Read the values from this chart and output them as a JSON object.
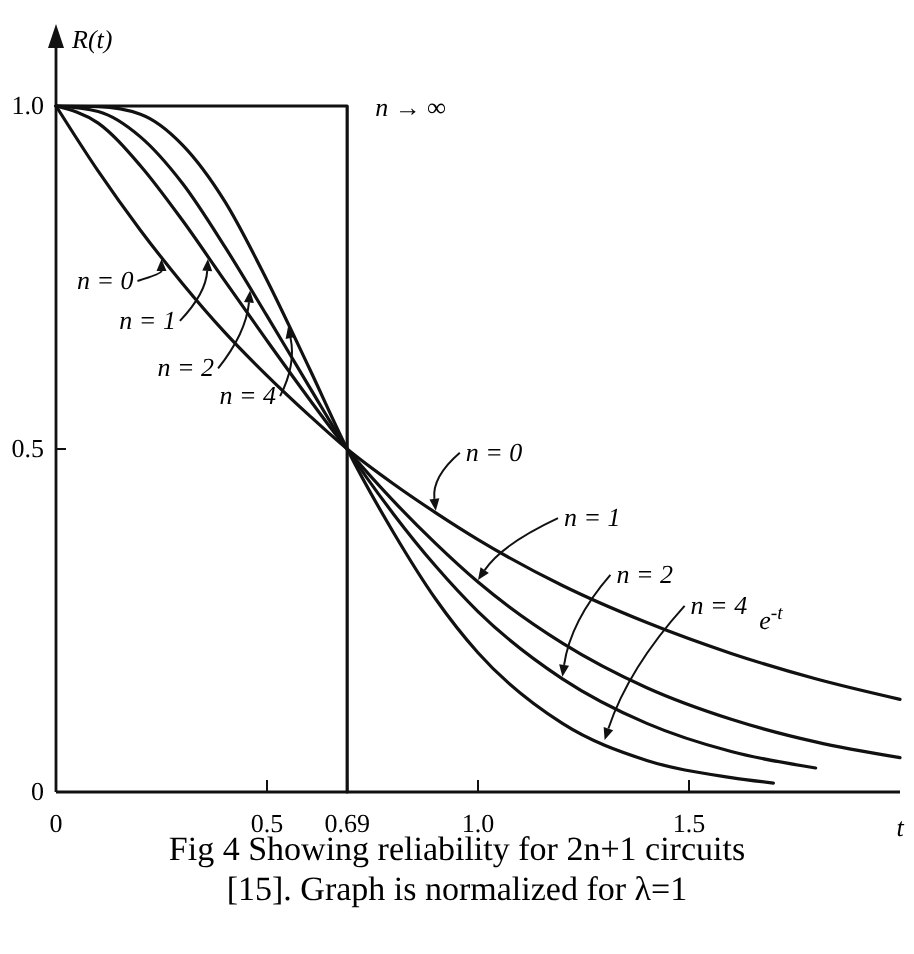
{
  "chart_data": {
    "type": "line",
    "title": "Fig 4   Showing reliability for 2n+1 circuits [15]. Graph is normalized for λ=1",
    "xlabel": "t",
    "ylabel": "R(t)",
    "xlim": [
      0,
      2.0
    ],
    "ylim": [
      0,
      1
    ],
    "xticks": [
      0,
      0.5,
      0.69,
      {
        "value": 1,
        "label": "1.0"
      },
      1.5
    ],
    "yticks": [
      0,
      0.5,
      {
        "value": 1,
        "label": "1.0"
      }
    ],
    "grid": false,
    "legend": false,
    "marker": "none",
    "line_style": "solid",
    "series": [
      {
        "color": "#111111",
        "x": [
          0,
          0.1,
          0.2,
          0.3,
          0.4,
          0.5,
          0.6,
          0.69,
          0.8,
          0.9,
          1.0,
          1.2,
          1.4,
          1.6,
          1.8,
          2.0
        ],
        "values": [
          1,
          0.905,
          0.819,
          0.741,
          0.67,
          0.607,
          0.549,
          0.5,
          0.449,
          0.407,
          0.368,
          0.301,
          0.247,
          0.202,
          0.165,
          0.135
        ]
      },
      {
        "color": "#111111",
        "x": [
          0,
          0.1,
          0.2,
          0.3,
          0.4,
          0.5,
          0.6,
          0.69,
          0.8,
          0.9,
          1.0,
          1.2,
          1.4,
          1.6,
          1.8,
          2.0
        ],
        "values": [
          1,
          0.975,
          0.913,
          0.833,
          0.745,
          0.658,
          0.573,
          0.5,
          0.424,
          0.362,
          0.306,
          0.217,
          0.152,
          0.106,
          0.073,
          0.05
        ]
      },
      {
        "color": "#111111",
        "x": [
          0,
          0.1,
          0.2,
          0.3,
          0.4,
          0.5,
          0.6,
          0.69,
          0.8,
          0.9,
          1.0,
          1.2,
          1.4,
          1.6,
          1.8
        ],
        "values": [
          1,
          0.992,
          0.955,
          0.887,
          0.795,
          0.694,
          0.591,
          0.5,
          0.405,
          0.329,
          0.263,
          0.165,
          0.1,
          0.059,
          0.035
        ]
      },
      {
        "color": "#111111",
        "x": [
          0,
          0.1,
          0.2,
          0.3,
          0.4,
          0.5,
          0.6,
          0.69,
          0.8,
          0.9,
          1.0,
          1.2,
          1.4,
          1.6,
          1.7
        ],
        "values": [
          1,
          0.999,
          0.988,
          0.943,
          0.861,
          0.746,
          0.618,
          0.5,
          0.378,
          0.281,
          0.203,
          0.1,
          0.046,
          0.021,
          0.013
        ]
      },
      {
        "name": "n → ∞",
        "color": "#111111",
        "x": [
          0,
          0.69,
          0.69
        ],
        "values": [
          1,
          1,
          0
        ]
      }
    ],
    "annotations": [
      {
        "text": "n = 0",
        "x": 0.25,
        "y": 0.78
      },
      {
        "text": "n = 1",
        "x": 0.36,
        "y": 0.78
      },
      {
        "text": "n = 2",
        "x": 0.46,
        "y": 0.734
      },
      {
        "text": "n = 4",
        "x": 0.55,
        "y": 0.682
      },
      {
        "text": "n = 0",
        "x": 0.9,
        "y": 0.407
      },
      {
        "text": "n = 1",
        "x": 1.0,
        "y": 0.306
      },
      {
        "text": "n = 2",
        "x": 1.2,
        "y": 0.165
      },
      {
        "text": "n = 4",
        "x": 1.3,
        "y": 0.073
      },
      "e$^{-t}$"
    ]
  }
}
